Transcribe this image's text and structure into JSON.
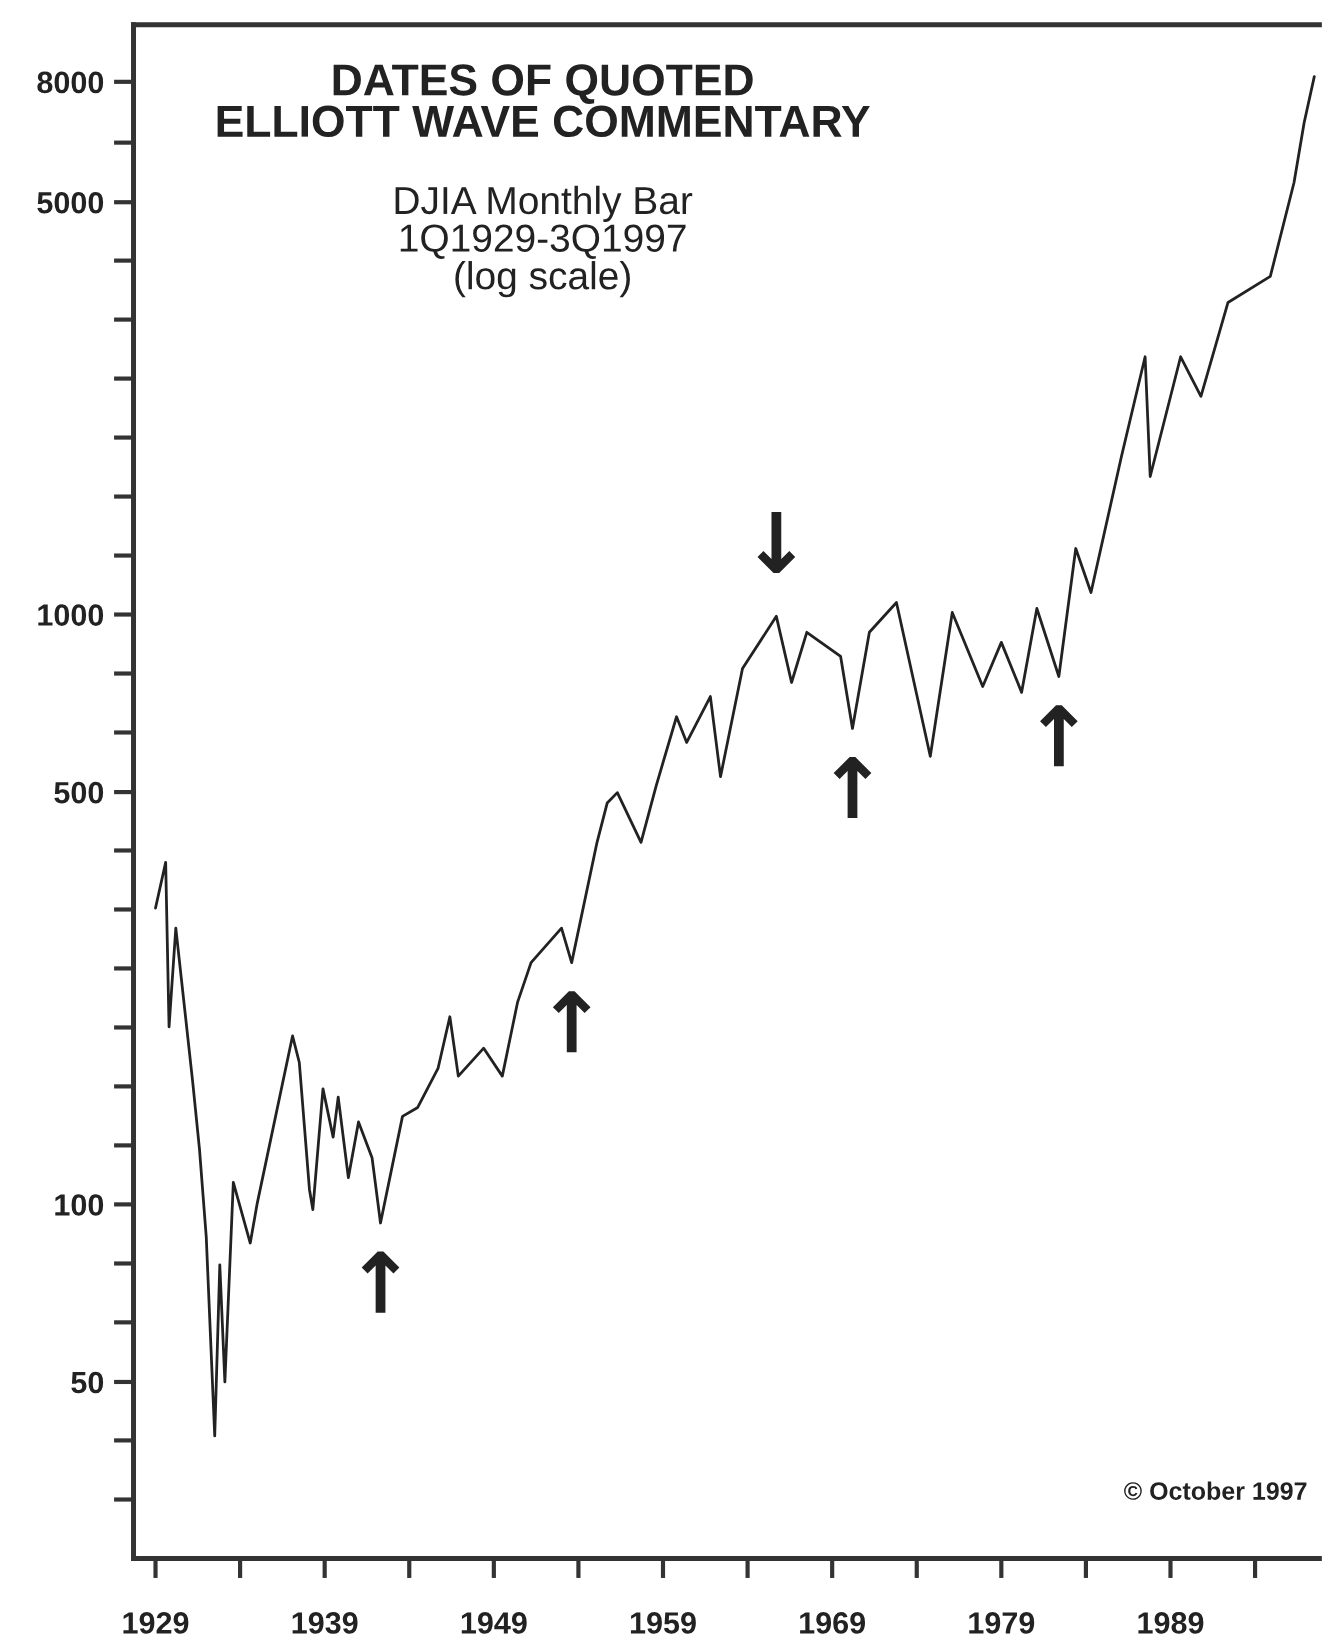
{
  "chart_data": {
    "type": "line",
    "title": "DATES OF QUOTED\nELLIOTT WAVE COMMENTARY",
    "subtitle": "DJIA Monthly Bar\n1Q1929-3Q1997\n(log scale)",
    "log": "y",
    "grid": false,
    "legend": false,
    "xlim": [
      1927.7,
      1997.8
    ],
    "xticks": [
      1929,
      {
        "value": 1934,
        "label": null
      },
      1939,
      {
        "value": 1944,
        "label": null
      },
      1949,
      {
        "value": 1954,
        "label": null
      },
      1959,
      {
        "value": 1964,
        "label": null
      },
      1969,
      {
        "value": 1974,
        "label": null
      },
      1979,
      {
        "value": 1984,
        "label": null
      },
      1989,
      {
        "value": 1994,
        "label": null
      }
    ],
    "ylim": [
      25.1,
      10000
    ],
    "yticks": [
      {
        "value": 31.6,
        "label": null
      },
      {
        "value": 39.8,
        "label": null
      },
      50,
      {
        "value": 63.1,
        "label": null
      },
      {
        "value": 79.4,
        "label": null
      },
      100,
      {
        "value": 125.9,
        "label": null
      },
      {
        "value": 158.5,
        "label": null
      },
      {
        "value": 199.5,
        "label": null
      },
      {
        "value": 251.2,
        "label": null
      },
      {
        "value": 316.2,
        "label": null
      },
      {
        "value": 398.1,
        "label": null
      },
      500,
      {
        "value": 631,
        "label": null
      },
      {
        "value": 794.3,
        "label": null
      },
      1000,
      {
        "value": 1258.9,
        "label": null
      },
      {
        "value": 1584.9,
        "label": null
      },
      {
        "value": 1995.3,
        "label": null
      },
      {
        "value": 2511.9,
        "label": null
      },
      {
        "value": 3162.3,
        "label": null
      },
      {
        "value": 3981.1,
        "label": null
      },
      5000,
      {
        "value": 6309.6,
        "label": null
      },
      8000
    ],
    "x": [
      1929.0,
      1929.6,
      1929.8,
      1930.2,
      1931.2,
      1931.6,
      1932.0,
      1932.5,
      1932.8,
      1933.1,
      1933.6,
      1934.6,
      1935.0,
      1937.1,
      1937.5,
      1938.1,
      1938.3,
      1938.9,
      1939.5,
      1939.8,
      1940.4,
      1941.0,
      1941.8,
      1942.3,
      1943.6,
      1944.5,
      1945.7,
      1946.4,
      1946.9,
      1948.4,
      1949.5,
      1950.4,
      1951.2,
      1953.0,
      1953.6,
      1955.1,
      1955.7,
      1956.3,
      1957.7,
      1958.6,
      1959.8,
      1960.4,
      1961.8,
      1962.4,
      1963.7,
      1965.7,
      1966.6,
      1967.5,
      1969.5,
      1970.2,
      1971.2,
      1972.8,
      1974.8,
      1976.1,
      1977.9,
      1979.0,
      1980.2,
      1981.1,
      1982.4,
      1983.4,
      1984.3,
      1986.1,
      1987.5,
      1987.8,
      1989.6,
      1990.8,
      1992.4,
      1994.9,
      1996.3,
      1996.9,
      1997.5
    ],
    "series": [
      {
        "color": "#222222",
        "values": [
          318,
          380,
          200,
          294,
          161,
          124,
          88,
          40.5,
          79,
          50,
          109,
          86,
          100,
          193,
          174,
          106,
          98,
          157,
          130,
          152,
          111,
          138,
          120,
          93,
          141,
          146,
          170,
          208,
          165,
          184,
          165,
          220,
          257,
          294,
          257,
          411,
          479,
          499,
          411,
          513,
          671,
          607,
          726,
          531,
          810,
          993,
          767,
          933,
          849,
          641,
          933,
          1048,
          575,
          1008,
          755,
          897,
          738,
          1024,
          785,
          1294,
          1090,
          1853,
          2735,
          1714,
          2735,
          2344,
          3381,
          3743,
          5395,
          6820,
          8163
        ]
      }
    ],
    "annotations": [
      {
        "text": "↑",
        "x": 1942.3,
        "y": 93
      },
      {
        "text": "↑",
        "x": 1953.6,
        "y": 257
      },
      {
        "text": "↓",
        "x": 1965.7,
        "y": 993
      },
      {
        "text": "↑",
        "x": 1970.2,
        "y": 641
      },
      {
        "text": "↑",
        "x": 1982.4,
        "y": 785
      },
      "© October 1997"
    ]
  }
}
